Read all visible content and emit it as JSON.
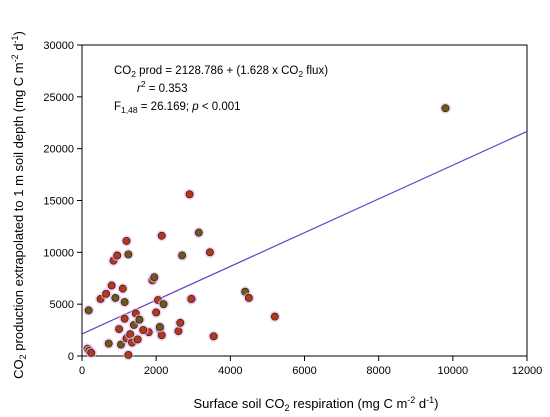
{
  "chart_data": {
    "type": "scatter",
    "xlabel": {
      "pre": "Surface soil CO",
      "sub": "2",
      "mid": " respiration (mg C m",
      "sup1": "-2",
      "mid2": " d",
      "sup2": "-1",
      "post": ")"
    },
    "ylabel": {
      "pre": "CO",
      "sub": "2",
      "mid": " production extrapolated to 1 m soil depth (mg C m",
      "sup1": "-2",
      "mid2": " d",
      "sup2": "-1",
      "post": ")"
    },
    "xlim": [
      0,
      12000
    ],
    "ylim": [
      0,
      30000
    ],
    "x_ticks": [
      "0",
      "2000",
      "4000",
      "6000",
      "8000",
      "10000",
      "12000"
    ],
    "y_ticks": [
      "0",
      "5000",
      "10000",
      "15000",
      "20000",
      "25000",
      "30000"
    ],
    "grid": false,
    "annotations": {
      "line1": {
        "pre": "CO",
        "sub": "2",
        "mid": " prod = 2128.786 + (1.628 x CO",
        "sub2": "2",
        "post": " flux)"
      },
      "line2": {
        "var": "r",
        "sup": "2",
        "post": " = 0.353"
      },
      "line3": {
        "var": "F",
        "sub": "1,48",
        "mid": " = 26.169; ",
        "var2": "p",
        "post": " < 0.001"
      }
    },
    "regression": {
      "intercept": 2128.786,
      "slope": 1.628
    },
    "colors": {
      "marker_fill": "#b03a1e",
      "marker_fill_dark": "#6b5a1e",
      "marker_edge": "#3a1a0a",
      "marker_glow": "#e8b8f0",
      "line": "#6a3cc8"
    },
    "points": [
      {
        "x": 150,
        "y": 700
      },
      {
        "x": 200,
        "y": 500
      },
      {
        "x": 250,
        "y": 300
      },
      {
        "x": 180,
        "y": 4400
      },
      {
        "x": 500,
        "y": 5500
      },
      {
        "x": 650,
        "y": 6000
      },
      {
        "x": 720,
        "y": 1200
      },
      {
        "x": 800,
        "y": 6800
      },
      {
        "x": 850,
        "y": 9200
      },
      {
        "x": 900,
        "y": 5600
      },
      {
        "x": 950,
        "y": 9700
      },
      {
        "x": 1000,
        "y": 2600
      },
      {
        "x": 1050,
        "y": 1100
      },
      {
        "x": 1100,
        "y": 6500
      },
      {
        "x": 1150,
        "y": 3600
      },
      {
        "x": 1150,
        "y": 5200
      },
      {
        "x": 1200,
        "y": 1700
      },
      {
        "x": 1200,
        "y": 11100
      },
      {
        "x": 1250,
        "y": 9800
      },
      {
        "x": 1300,
        "y": 2100
      },
      {
        "x": 1350,
        "y": 1300
      },
      {
        "x": 1400,
        "y": 3000
      },
      {
        "x": 1450,
        "y": 4100
      },
      {
        "x": 1500,
        "y": 1600
      },
      {
        "x": 1550,
        "y": 3500
      },
      {
        "x": 1800,
        "y": 2300
      },
      {
        "x": 1900,
        "y": 7300
      },
      {
        "x": 1950,
        "y": 7600
      },
      {
        "x": 2000,
        "y": 4200
      },
      {
        "x": 2050,
        "y": 5400
      },
      {
        "x": 2100,
        "y": 2600
      },
      {
        "x": 2150,
        "y": 2000
      },
      {
        "x": 2150,
        "y": 11600
      },
      {
        "x": 2200,
        "y": 5000
      },
      {
        "x": 2600,
        "y": 2400
      },
      {
        "x": 2650,
        "y": 3200
      },
      {
        "x": 2700,
        "y": 9700
      },
      {
        "x": 2900,
        "y": 15600
      },
      {
        "x": 2950,
        "y": 5500
      },
      {
        "x": 3150,
        "y": 11900
      },
      {
        "x": 3450,
        "y": 10000
      },
      {
        "x": 3550,
        "y": 1900
      },
      {
        "x": 4400,
        "y": 6200
      },
      {
        "x": 4500,
        "y": 5600
      },
      {
        "x": 5200,
        "y": 3800
      },
      {
        "x": 9800,
        "y": 23900
      },
      {
        "x": 1250,
        "y": 100
      },
      {
        "x": 1650,
        "y": 2500
      },
      {
        "x": 2100,
        "y": 2800
      },
      {
        "x": 2950,
        "y": 5500
      }
    ]
  }
}
